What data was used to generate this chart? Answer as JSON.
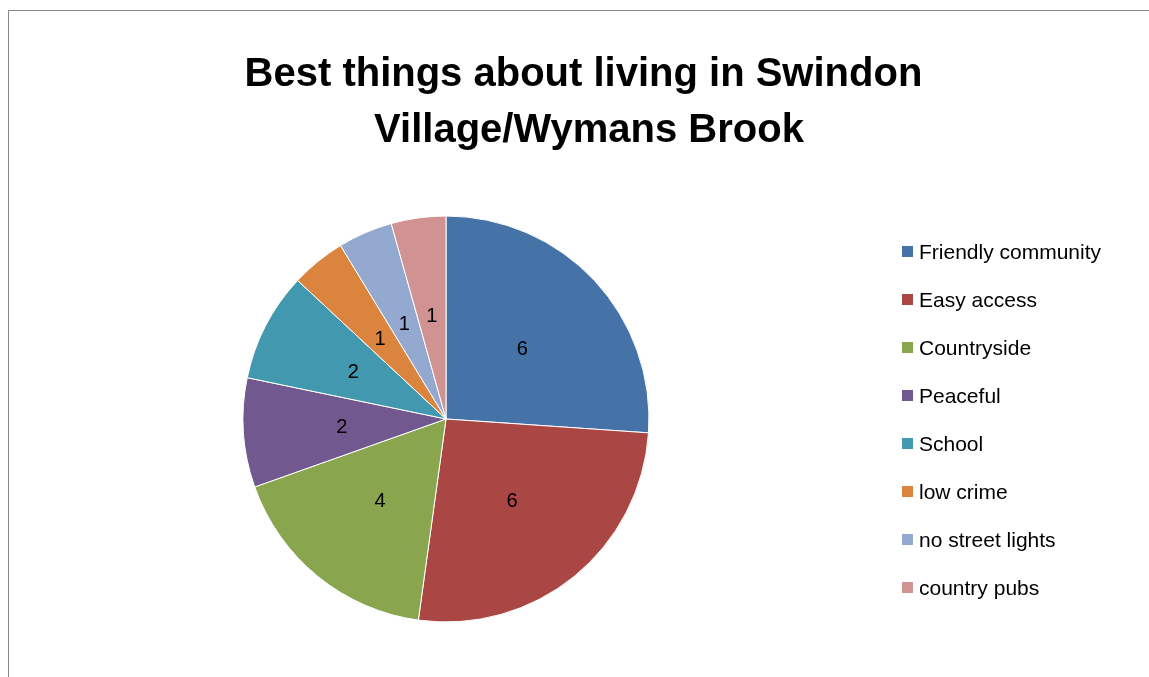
{
  "chart_data": {
    "type": "pie",
    "title": "Best things about living in Swindon Village/Wymans Brook",
    "categories": [
      "Friendly community",
      "Easy access",
      "Countryside",
      "Peaceful",
      "School",
      "low crime",
      "no street lights",
      "country pubs"
    ],
    "values": [
      6,
      6,
      4,
      2,
      2,
      1,
      1,
      1
    ],
    "colors": [
      "#4572a7",
      "#aa4643",
      "#89a54e",
      "#71588f",
      "#4198af",
      "#db843d",
      "#93a9cf",
      "#d19392"
    ],
    "data_labels": true,
    "legend": "right"
  }
}
